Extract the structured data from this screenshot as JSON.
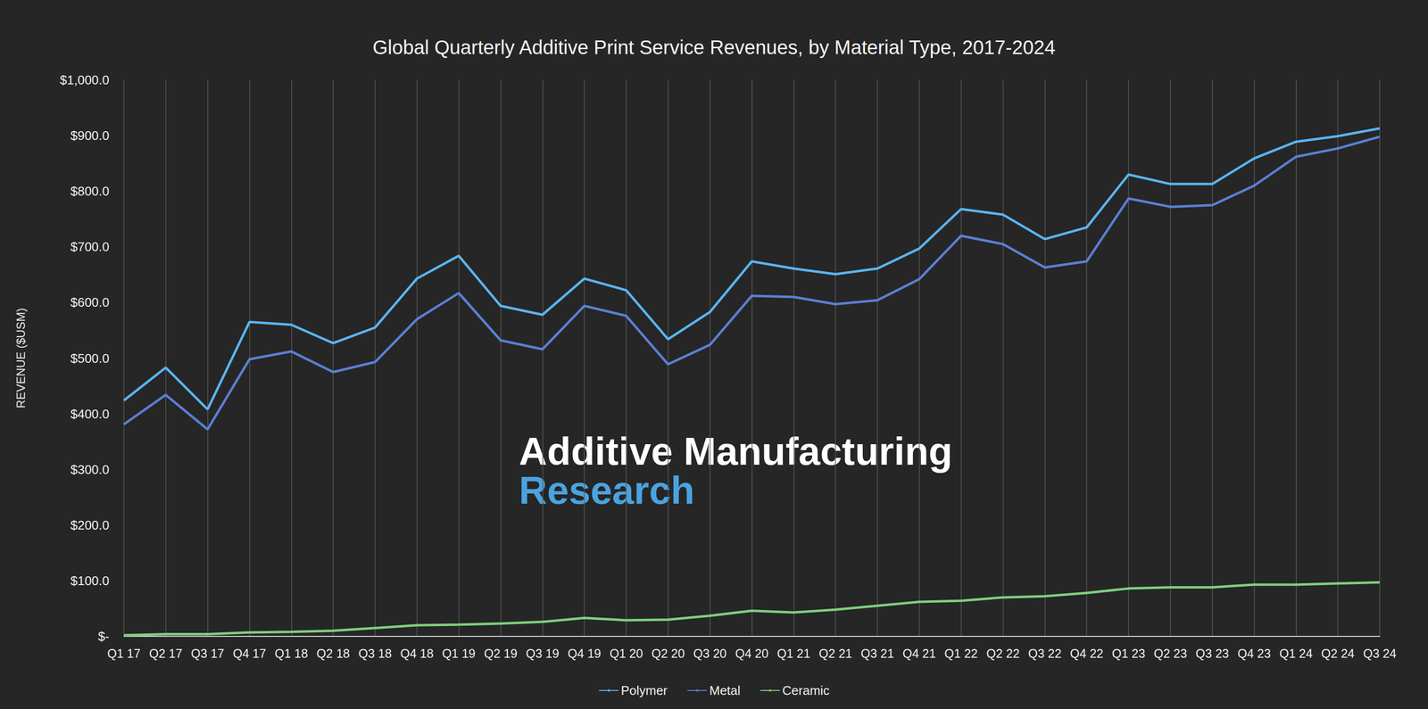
{
  "chart_data": {
    "type": "line",
    "title": "Global Quarterly Additive Print Service Revenues, by Material Type, 2017-2024",
    "y_label": "REVENUE ($USM)",
    "annotations": [
      "Additive Manufacturing",
      "Research"
    ],
    "categories": [
      "Q1 17",
      "Q2 17",
      "Q3 17",
      "Q4 17",
      "Q1 18",
      "Q2 18",
      "Q3 18",
      "Q4 18",
      "Q1 19",
      "Q2 19",
      "Q3 19",
      "Q4 19",
      "Q1 20",
      "Q2 20",
      "Q3 20",
      "Q4 20",
      "Q1 21",
      "Q2 21",
      "Q3 21",
      "Q4 21",
      "Q1 22",
      "Q2 22",
      "Q3 22",
      "Q4 22",
      "Q1 23",
      "Q2 23",
      "Q3 23",
      "Q4 23",
      "Q1 24",
      "Q2 24",
      "Q3 24"
    ],
    "series": [
      {
        "name": "Polymer",
        "color": "#5ab4f0",
        "values": [
          424,
          483,
          408,
          565,
          560,
          527,
          555,
          643,
          684,
          594,
          578,
          643,
          622,
          534,
          583,
          674,
          661,
          651,
          661,
          697,
          768,
          758,
          714,
          735,
          830,
          813,
          813,
          859,
          889,
          899,
          913
        ]
      },
      {
        "name": "Metal",
        "color": "#5b7fd4",
        "values": [
          381,
          434,
          372,
          498,
          512,
          475,
          493,
          570,
          617,
          532,
          516,
          594,
          576,
          489,
          524,
          612,
          610,
          597,
          604,
          642,
          720,
          705,
          663,
          674,
          787,
          772,
          775,
          810,
          862,
          877,
          898
        ]
      },
      {
        "name": "Ceramic",
        "color": "#7fcf7f",
        "values": [
          2,
          4,
          4,
          7,
          8,
          10,
          15,
          20,
          21,
          23,
          26,
          33,
          29,
          30,
          37,
          46,
          43,
          48,
          55,
          62,
          64,
          70,
          72,
          78,
          86,
          88,
          88,
          93,
          93,
          95,
          97
        ]
      }
    ],
    "ylim": [
      0,
      1000
    ],
    "yticks": [
      {
        "value": 0,
        "label": "$-"
      },
      {
        "value": 100,
        "label": "$100.0"
      },
      {
        "value": 200,
        "label": "$200.0"
      },
      {
        "value": 300,
        "label": "$300.0"
      },
      {
        "value": 400,
        "label": "$400.0"
      },
      {
        "value": 500,
        "label": "$500.0"
      },
      {
        "value": 600,
        "label": "$600.0"
      },
      {
        "value": 700,
        "label": "$700.0"
      },
      {
        "value": 800,
        "label": "$800.0"
      },
      {
        "value": 900,
        "label": "$900.0"
      },
      {
        "value": 1000,
        "label": "$1,000.0"
      }
    ],
    "grid": true,
    "legend": "bottom"
  }
}
